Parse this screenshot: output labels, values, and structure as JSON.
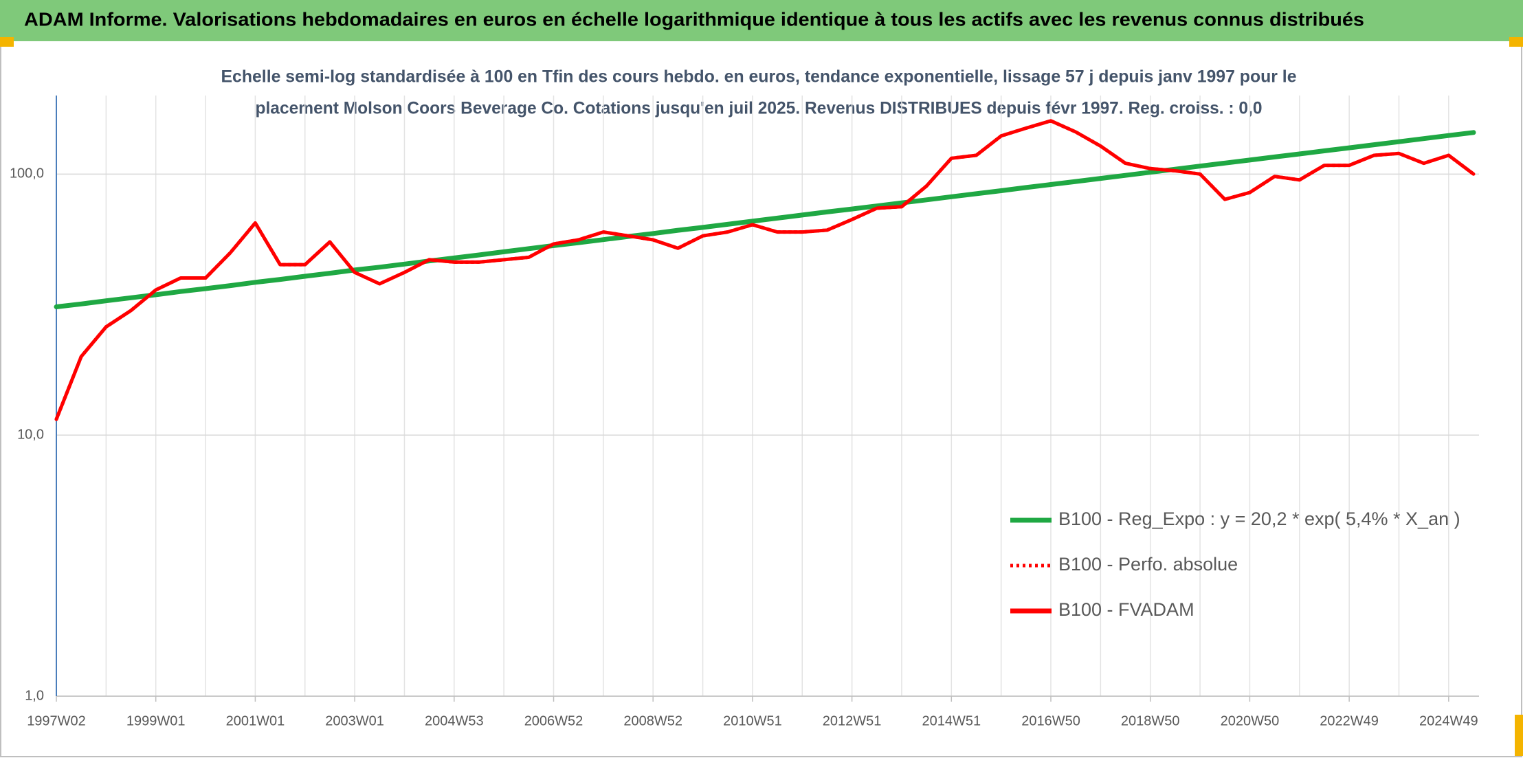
{
  "chart_data": {
    "type": "line",
    "title": "ADAM Informe. Valorisations hebdomadaires en euros en échelle logarithmique identique à tous les actifs avec les revenus connus distribués",
    "subtitle_lines": [
      "Echelle semi-log standardisée à 100 en Tfin des cours hebdo. en euros, tendance exponentielle, lissage 57 j depuis janv 1997 pour le",
      "placement Molson Coors Beverage Co. Cotations jusqu'en juil 2025. Revenus DISTRIBUES depuis févr 1997. Reg. croiss. : 0,0"
    ],
    "categories": [
      "1997W02",
      null,
      null,
      null,
      "1999W01",
      null,
      null,
      null,
      "2001W01",
      null,
      null,
      null,
      "2003W01",
      null,
      null,
      null,
      "2004W53",
      null,
      null,
      null,
      "2006W52",
      null,
      null,
      null,
      "2008W52",
      null,
      null,
      null,
      "2010W51",
      null,
      null,
      null,
      "2012W51",
      null,
      null,
      null,
      "2014W51",
      null,
      null,
      null,
      "2016W50",
      null,
      null,
      null,
      "2018W50",
      null,
      null,
      null,
      "2020W50",
      null,
      null,
      null,
      "2022W49",
      null,
      null,
      null,
      "2024W49",
      null
    ],
    "series": [
      {
        "name": "B100 - Reg_Expo : y = 20,2 * exp( 5,4% *  X_an )",
        "color": "#1fa843",
        "dash": "solid",
        "values": [
          31.0,
          31.8,
          32.7,
          33.6,
          34.5,
          35.5,
          36.4,
          37.4,
          38.5,
          39.5,
          40.6,
          41.7,
          42.9,
          44.0,
          45.2,
          46.5,
          47.7,
          49.0,
          50.4,
          51.8,
          53.2,
          54.6,
          56.1,
          57.7,
          59.2,
          60.9,
          62.5,
          64.2,
          66.0,
          67.8,
          69.7,
          71.6,
          73.5,
          75.5,
          77.6,
          79.7,
          81.9,
          84.1,
          86.4,
          88.8,
          91.2,
          93.7,
          96.3,
          98.9,
          101.6,
          104.4,
          107.3,
          110.2,
          113.2,
          116.3,
          119.5,
          122.8,
          126.1,
          129.6,
          133.1,
          136.8,
          140.5,
          144.3
        ]
      },
      {
        "name": "B100 - Perfo. absolue",
        "color": "#ff0000",
        "dash": "dotted",
        "values": [
          11.5,
          20,
          26,
          30,
          36,
          40,
          40,
          50,
          65,
          45,
          45,
          55,
          42,
          38,
          42,
          47,
          46,
          46,
          47,
          48,
          54,
          56,
          60,
          58,
          56,
          52,
          58,
          60,
          64,
          60,
          60,
          61,
          67,
          74,
          75,
          90,
          115,
          118,
          140,
          150,
          160,
          145,
          128,
          110,
          105,
          103,
          100,
          80,
          85,
          98,
          95,
          108,
          108,
          118,
          120,
          110,
          118,
          100
        ]
      },
      {
        "name": "B100 - FVADAM",
        "color": "#ff0000",
        "dash": "solid",
        "values": [
          11.5,
          20,
          26,
          30,
          36,
          40,
          40,
          50,
          65,
          45,
          45,
          55,
          42,
          38,
          42,
          47,
          46,
          46,
          47,
          48,
          54,
          56,
          60,
          58,
          56,
          52,
          58,
          60,
          64,
          60,
          60,
          61,
          67,
          74,
          75,
          90,
          115,
          118,
          140,
          150,
          160,
          145,
          128,
          110,
          105,
          103,
          100,
          80,
          85,
          98,
          95,
          108,
          108,
          118,
          120,
          110,
          118,
          100
        ]
      }
    ],
    "log_y": true,
    "ylim": [
      1,
      200
    ],
    "yticks": [
      {
        "value": 1,
        "label": "1,0"
      },
      {
        "value": 10,
        "label": "10,0"
      },
      {
        "value": 100,
        "label": "100,0"
      }
    ],
    "grid": true,
    "legend": "right"
  }
}
